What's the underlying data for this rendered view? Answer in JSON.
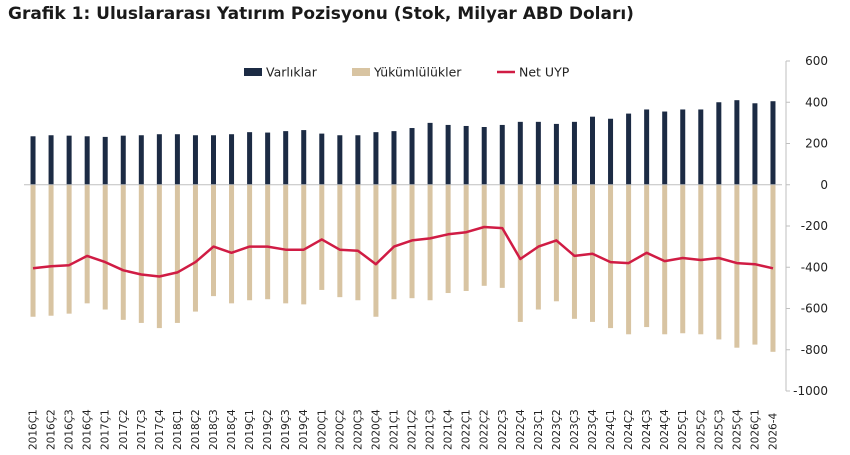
{
  "title": "Grafik 1: Uluslararası Yatırım Pozisyonu (Stok, Milyar ABD Doları)",
  "chart_data": {
    "type": "bar",
    "categories": [
      "2016Ç1",
      "2016Ç2",
      "2016Ç3",
      "2016Ç4",
      "2017Ç1",
      "2017Ç2",
      "2017Ç3",
      "2017Ç4",
      "2018Ç1",
      "2018Ç2",
      "2018Ç3",
      "2018Ç4",
      "2019Ç1",
      "2019Ç2",
      "2019Ç3",
      "2019Ç4",
      "2020Ç1",
      "2020Ç2",
      "2020Ç3",
      "2020Ç4",
      "2021Ç1",
      "2021Ç2",
      "2021Ç3",
      "2021Ç4",
      "2022Ç1",
      "2022Ç2",
      "2022Ç3",
      "2022Ç4",
      "2023Ç1",
      "2023Ç2",
      "2023Ç3",
      "2023Ç4",
      "2024Ç1",
      "2024Ç2",
      "2024Ç3",
      "2024Ç4",
      "2025Ç1",
      "2025Ç2",
      "2025Ç3",
      "2025Ç4",
      "2026Ç1",
      "2026-4"
    ],
    "x_labels": [
      "2016Ç1",
      "2016Ç2",
      "2016Ç3",
      "2016Ç4",
      "2017Ç1",
      "2017Ç2",
      "2017Ç3",
      "2017Ç4",
      "2018Ç1",
      "2018Ç2",
      "2018Ç3",
      "2018Ç4",
      "2019Ç1",
      "2019Ç2",
      "2019Ç3",
      "2019Ç4",
      "2020Ç1",
      "2020Ç2",
      "2020Ç3",
      "2020Ç4",
      "2021Ç1",
      "2021Ç2",
      "2021Ç3",
      "2021Ç4",
      "2022Ç1",
      "2022Ç2",
      "2022Ç3",
      "2022Ç4",
      "2023Ç1",
      "2023Ç2",
      "2023Ç3",
      "2023Ç4",
      "2024Ç1",
      "2024Ç2",
      "2024Ç3",
      "2024Ç4",
      "2025Ç1",
      "2025Ç2",
      "2025Ç3",
      "2025Ç4",
      "2026Ç1",
      "2026-4"
    ],
    "series": [
      {
        "name": "Varlıklar",
        "type": "bar",
        "color": "#1c2b44",
        "values": [
          235,
          240,
          238,
          235,
          232,
          238,
          240,
          245,
          245,
          240,
          240,
          245,
          255,
          253,
          260,
          265,
          248,
          240,
          240,
          255,
          260,
          275,
          300,
          290,
          285,
          280,
          290,
          305,
          305,
          295,
          305,
          330,
          320,
          345,
          365,
          355,
          365,
          365,
          400,
          410,
          395,
          405
        ]
      },
      {
        "name": "Yükümlülükler",
        "type": "bar",
        "color": "#d8c4a2",
        "values": [
          -640,
          -635,
          -625,
          -575,
          -605,
          -655,
          -670,
          -695,
          -670,
          -615,
          -540,
          -575,
          -560,
          -555,
          -575,
          -580,
          -510,
          -545,
          -560,
          -640,
          -555,
          -550,
          -560,
          -525,
          -515,
          -490,
          -500,
          -665,
          -605,
          -565,
          -650,
          -665,
          -695,
          -725,
          -690,
          -725,
          -720,
          -725,
          -750,
          -790,
          -775,
          -810
        ]
      },
      {
        "name": "Net UYP",
        "type": "line",
        "color": "#d01c44",
        "values": [
          -405,
          -395,
          -390,
          -345,
          -375,
          -415,
          -435,
          -445,
          -425,
          -375,
          -300,
          -330,
          -300,
          -300,
          -315,
          -315,
          -265,
          -315,
          -320,
          -385,
          -300,
          -270,
          -260,
          -240,
          -230,
          -205,
          -210,
          -360,
          -300,
          -270,
          -345,
          -335,
          -375,
          -380,
          -330,
          -370,
          -355,
          -365,
          -355,
          -380,
          -385,
          -405
        ]
      }
    ],
    "y_axis": {
      "position": "right",
      "ylim": [
        -1000,
        600
      ],
      "ticks": [
        600,
        400,
        200,
        0,
        -200,
        -400,
        -600,
        -800,
        -1000
      ],
      "tick_labels": [
        "600",
        "400",
        "200",
        "0",
        "-200",
        "-400",
        "-600",
        "-800",
        "-1000"
      ]
    },
    "legend": {
      "position": "top-center",
      "items": [
        "Varlıklar",
        "Yükümlülükler",
        "Net UYP"
      ]
    },
    "grid": false
  }
}
